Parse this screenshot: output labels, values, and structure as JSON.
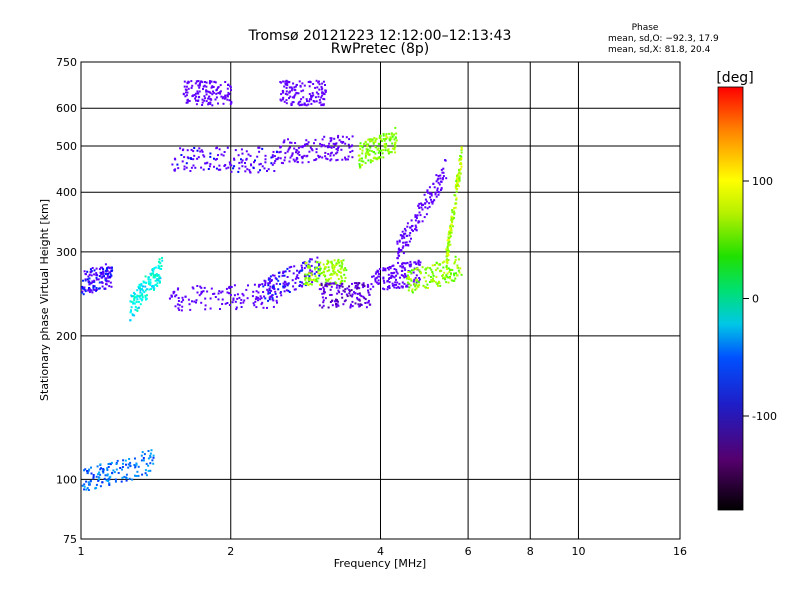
{
  "chart_data": {
    "type": "scatter",
    "title": "Tromsø 20121223 12:12:00–12:13:43",
    "subtitle": "RwPretec (8p)",
    "xlabel": "Frequency [MHz]",
    "ylabel": "Stationary phase Virtual Height [km]",
    "x_scale": "log",
    "y_scale": "log",
    "xlim": [
      1,
      16
    ],
    "ylim": [
      75,
      750
    ],
    "x_ticks": [
      1,
      2,
      4,
      6,
      8,
      10,
      16
    ],
    "x_tick_labels": [
      "1",
      "2",
      "4",
      "6",
      "8",
      "10",
      "16"
    ],
    "y_ticks": [
      75,
      100,
      200,
      300,
      400,
      500,
      600,
      750
    ],
    "y_tick_labels": [
      "75",
      "100",
      "200",
      "300",
      "400",
      "500",
      "600",
      "750"
    ],
    "grid": true,
    "stats": {
      "heading": "Phase",
      "line_o": "mean, sd,O: −92.3, 17.9",
      "line_x": "mean, sd,X:  81.8, 20.4"
    },
    "colorbar": {
      "label": "[deg]",
      "range": [
        -180,
        180
      ],
      "ticks": [
        100,
        0,
        -100
      ],
      "tick_labels": [
        "100",
        "0",
        "-100"
      ]
    },
    "traces": [
      {
        "from": [
          1.0,
          260
        ],
        "to": [
          1.15,
          270
        ],
        "phase": -95
      },
      {
        "from": [
          1.25,
          230
        ],
        "to": [
          1.45,
          280
        ],
        "phase": -20
      },
      {
        "from": [
          1.5,
          240
        ],
        "to": [
          2.5,
          245
        ],
        "phase": -110
      },
      {
        "from": [
          2.3,
          250
        ],
        "to": [
          3.0,
          280
        ],
        "phase": -95
      },
      {
        "from": [
          2.8,
          270
        ],
        "to": [
          3.4,
          275
        ],
        "phase": 85
      },
      {
        "from": [
          3.0,
          245
        ],
        "to": [
          3.8,
          245
        ],
        "phase": -140
      },
      {
        "from": [
          3.8,
          260
        ],
        "to": [
          4.8,
          275
        ],
        "phase": -110
      },
      {
        "from": [
          4.5,
          260
        ],
        "to": [
          5.8,
          280
        ],
        "phase": 80
      },
      {
        "from": [
          1.5,
          470
        ],
        "to": [
          2.5,
          470
        ],
        "phase": -105
      },
      {
        "from": [
          2.5,
          490
        ],
        "to": [
          3.5,
          500
        ],
        "phase": -120
      },
      {
        "from": [
          3.6,
          480
        ],
        "to": [
          4.3,
          520
        ],
        "phase": 80
      },
      {
        "from": [
          4.3,
          300
        ],
        "to": [
          5.4,
          450
        ],
        "phase": -110
      },
      {
        "from": [
          5.4,
          290
        ],
        "to": [
          5.8,
          480
        ],
        "phase": 90
      },
      {
        "from": [
          1.6,
          650
        ],
        "to": [
          2.0,
          650
        ],
        "phase": -115
      },
      {
        "from": [
          2.5,
          650
        ],
        "to": [
          3.1,
          650
        ],
        "phase": -115
      },
      {
        "from": [
          1.0,
          100
        ],
        "to": [
          1.4,
          110
        ],
        "phase": -60
      }
    ]
  }
}
